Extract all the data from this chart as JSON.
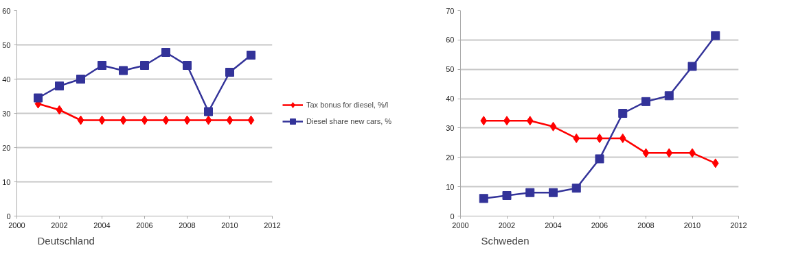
{
  "chart_data": [
    {
      "type": "line",
      "title": "Deutschland",
      "x": [
        2001,
        2002,
        2003,
        2004,
        2005,
        2006,
        2007,
        2008,
        2009,
        2010,
        2011
      ],
      "series": [
        {
          "name": "Tax bonus for diesel, %/l",
          "color": "#ff0000",
          "marker": "diamond",
          "values": [
            32.8,
            31,
            28,
            28,
            28,
            28,
            28,
            28,
            28,
            28,
            28
          ]
        },
        {
          "name": "Diesel share new cars, %",
          "color": "#333399",
          "marker": "square",
          "values": [
            34.5,
            38,
            40,
            44,
            42.5,
            44,
            47.8,
            44,
            30.5,
            42,
            47
          ]
        }
      ],
      "xlim": [
        2000,
        2012
      ],
      "xticks": [
        2000,
        2002,
        2004,
        2006,
        2008,
        2010,
        2012
      ],
      "ylim": [
        0,
        60
      ],
      "yticks": [
        0,
        10,
        20,
        30,
        40,
        50,
        60
      ],
      "grid": "y",
      "legend": "right"
    },
    {
      "type": "line",
      "title": "Schweden",
      "x": [
        2001,
        2002,
        2003,
        2004,
        2005,
        2006,
        2007,
        2008,
        2009,
        2010,
        2011
      ],
      "series": [
        {
          "color": "#ff0000",
          "marker": "diamond",
          "values": [
            32.5,
            32.5,
            32.5,
            30.5,
            26.5,
            26.5,
            26.5,
            21.5,
            21.5,
            21.5,
            18
          ]
        },
        {
          "color": "#333399",
          "marker": "square",
          "values": [
            6,
            7,
            8,
            8,
            9.5,
            19.5,
            35,
            39,
            41,
            51,
            61.5
          ]
        }
      ],
      "xlim": [
        2000,
        2012
      ],
      "xticks": [
        2000,
        2002,
        2004,
        2006,
        2008,
        2010,
        2012
      ],
      "ylim": [
        0,
        70
      ],
      "yticks": [
        0,
        10,
        20,
        30,
        40,
        50,
        60,
        70
      ],
      "grid": "y",
      "legend": false
    }
  ]
}
